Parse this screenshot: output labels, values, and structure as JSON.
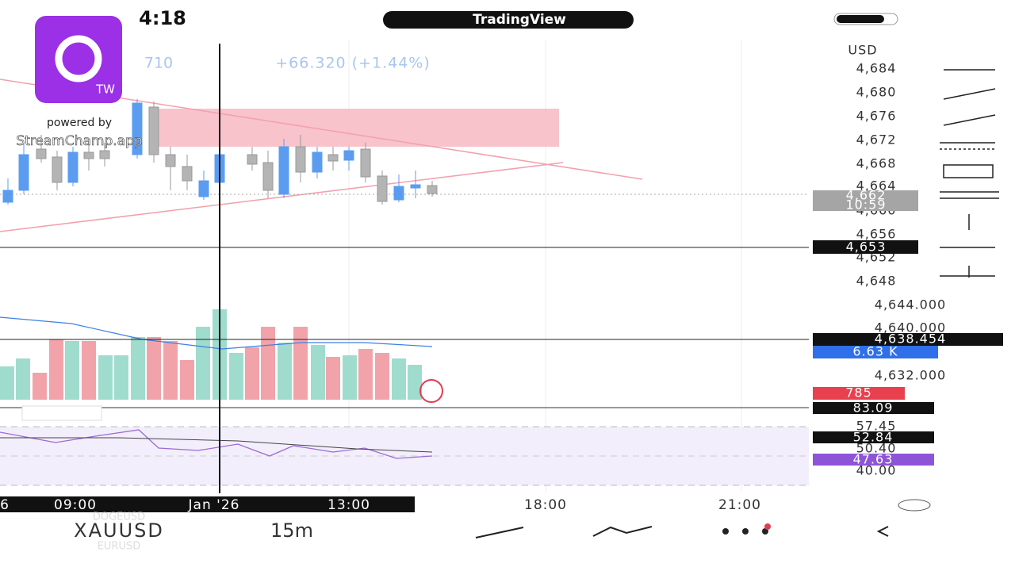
{
  "status_bar": {
    "time": "4:18",
    "app_name": "TradingView"
  },
  "overlay": {
    "logo_text": "TW",
    "powered_by": "powered by",
    "brand": "StreamChamp.app"
  },
  "header": {
    "price_fragment": "710",
    "change": "+66.320 (+1.44%)"
  },
  "price_axis": {
    "currency": "USD",
    "labels": [
      "4,684",
      "4,680",
      "4,676",
      "4,672",
      "4,668",
      "4,664",
      "4,660",
      "4,656",
      "4,652",
      "4,648",
      "4,644.000",
      "4,640.000",
      "4,632.000",
      "57.45",
      "50.40",
      "40.00"
    ],
    "last_price": "4,662",
    "countdown": "10:59",
    "crosshair_price": "4,653",
    "ma_value": "4,638.454",
    "volume_value": "6.63 K",
    "volume_red": "785",
    "rsi_high": "83.09",
    "rsi_value": "52.84",
    "rsi_ma": "47.63"
  },
  "time_axis": {
    "labels": [
      "6",
      "09:00",
      "Jan '26",
      "13:00",
      "18:00",
      "21:00"
    ]
  },
  "bottom_bar": {
    "symbol": "XAUUSD",
    "symbol_above": "DOGEUSD",
    "symbol_below": "EURUSD",
    "interval": "15m"
  }
}
